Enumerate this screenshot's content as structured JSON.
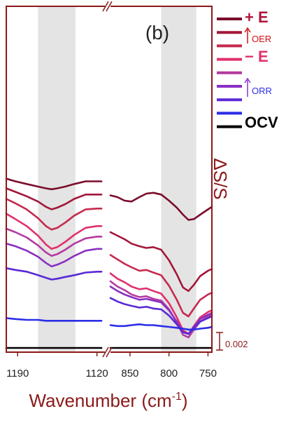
{
  "chart_data": {
    "type": "line",
    "panel_label": "(b)",
    "xlabel": "Wavenumber (cm",
    "xlabel_superscript": "-1",
    "xlabel_close": ")",
    "ylabel": "ΔS/S",
    "scale_bar_label": "0.002",
    "axis_color": "#8b1a1a",
    "broken_x_axis": true,
    "x_segments": [
      {
        "range": [
          1200,
          1113
        ],
        "ticks": [
          1190,
          1120
        ]
      },
      {
        "range": [
          875,
          745
        ],
        "ticks": [
          850,
          800,
          750
        ]
      }
    ],
    "shaded_regions": [
      {
        "segment": 0,
        "x": [
          1172,
          1139
        ]
      },
      {
        "segment": 1,
        "x": [
          810,
          765
        ]
      }
    ],
    "legend": {
      "top_label": "+ E",
      "oer_label": "OER",
      "bottom_label": "− E",
      "orr_label": "ORR",
      "ocv_label": "OCV"
    },
    "series": [
      {
        "color": "#7b0d2a",
        "offset": 0.0193,
        "left_x": [
          1200,
          1192,
          1182,
          1172,
          1165,
          1160,
          1155,
          1148,
          1140,
          1130,
          1120,
          1116
        ],
        "left_y": [
          0.0,
          -0.0003,
          -0.0006,
          -0.0009,
          -0.0011,
          -0.0012,
          -0.0011,
          -0.0009,
          -0.0006,
          -0.0003,
          -0.0003,
          -0.0003
        ],
        "right_x": [
          875,
          866,
          857,
          848,
          838,
          829,
          820,
          810,
          800,
          790,
          782,
          775,
          768,
          760,
          750,
          745
        ],
        "right_y": [
          -0.0019,
          -0.0021,
          -0.0025,
          -0.0026,
          -0.0021,
          -0.0017,
          -0.0016,
          -0.0018,
          -0.0025,
          -0.0033,
          -0.0041,
          -0.0047,
          -0.0046,
          -0.0041,
          -0.0035,
          -0.0032
        ]
      },
      {
        "color": "#a3173a",
        "offset": 0.0182,
        "left_x": [
          1200,
          1192,
          1182,
          1172,
          1165,
          1160,
          1155,
          1148,
          1140,
          1130,
          1120,
          1116
        ],
        "left_y": [
          0.0,
          -0.0004,
          -0.0009,
          -0.0015,
          -0.0021,
          -0.0024,
          -0.0022,
          -0.0018,
          -0.0012,
          -0.0007,
          -0.0007,
          -0.0007
        ],
        "right_x": [
          875,
          866,
          857,
          848,
          838,
          829,
          820,
          810,
          800,
          790,
          782,
          775,
          768,
          760,
          750,
          745
        ],
        "right_y": [
          -0.005,
          -0.0054,
          -0.0058,
          -0.0063,
          -0.0066,
          -0.0068,
          -0.0067,
          -0.007,
          -0.0082,
          -0.0098,
          -0.0113,
          -0.0117,
          -0.011,
          -0.01,
          -0.0094,
          -0.0092
        ]
      },
      {
        "color": "#c42a4e",
        "offset": 0.017,
        "left_x": [
          1200,
          1192,
          1182,
          1172,
          1165,
          1160,
          1155,
          1148,
          1140,
          1130,
          1120,
          1116
        ],
        "left_y": [
          0.0,
          -0.0005,
          -0.0012,
          -0.0022,
          -0.0031,
          -0.0035,
          -0.0033,
          -0.0027,
          -0.0019,
          -0.0012,
          -0.0011,
          -0.0011
        ],
        "right_x": [
          875,
          866,
          857,
          848,
          838,
          829,
          820,
          810,
          800,
          790,
          782,
          775,
          768,
          760,
          750,
          745
        ],
        "right_y": [
          -0.0064,
          -0.0069,
          -0.0074,
          -0.0078,
          -0.0082,
          -0.0081,
          -0.0084,
          -0.0087,
          -0.0099,
          -0.0115,
          -0.013,
          -0.0134,
          -0.0125,
          -0.0115,
          -0.0109,
          -0.0107
        ]
      },
      {
        "color": "#e0306e",
        "offset": 0.0153,
        "left_x": [
          1200,
          1192,
          1182,
          1172,
          1165,
          1160,
          1155,
          1148,
          1140,
          1130,
          1120,
          1116
        ],
        "left_y": [
          0.0,
          -0.0006,
          -0.0014,
          -0.0025,
          -0.0035,
          -0.004,
          -0.0038,
          -0.0032,
          -0.0024,
          -0.0016,
          -0.0014,
          -0.0014
        ],
        "right_x": [
          875,
          866,
          857,
          848,
          838,
          829,
          820,
          810,
          800,
          790,
          782,
          775,
          768,
          760,
          750,
          745
        ],
        "right_y": [
          -0.0068,
          -0.0074,
          -0.0078,
          -0.0083,
          -0.0086,
          -0.0085,
          -0.0088,
          -0.0091,
          -0.0102,
          -0.0118,
          -0.0133,
          -0.0137,
          -0.0128,
          -0.0118,
          -0.0112,
          -0.011
        ]
      },
      {
        "color": "#b43aa0",
        "offset": 0.0136,
        "left_x": [
          1200,
          1192,
          1182,
          1172,
          1165,
          1160,
          1155,
          1148,
          1140,
          1130,
          1120,
          1116
        ],
        "left_y": [
          0.0,
          -0.0004,
          -0.001,
          -0.0019,
          -0.0027,
          -0.0031,
          -0.0029,
          -0.0024,
          -0.0017,
          -0.0011,
          -0.0009,
          -0.0009
        ],
        "right_x": [
          875,
          866,
          857,
          848,
          838,
          829,
          820,
          810,
          800,
          790,
          782,
          775,
          768,
          760,
          750,
          745
        ],
        "right_y": [
          -0.006,
          -0.0066,
          -0.007,
          -0.0075,
          -0.0078,
          -0.0077,
          -0.008,
          -0.0082,
          -0.0092,
          -0.0107,
          -0.0121,
          -0.0124,
          -0.0115,
          -0.0106,
          -0.01,
          -0.0098
        ]
      },
      {
        "color": "#8a2fc2",
        "offset": 0.0119,
        "left_x": [
          1200,
          1192,
          1182,
          1172,
          1165,
          1160,
          1155,
          1148,
          1140,
          1130,
          1120,
          1116
        ],
        "left_y": [
          0.0,
          -0.0003,
          -0.0008,
          -0.0015,
          -0.0022,
          -0.0026,
          -0.0024,
          -0.002,
          -0.0014,
          -0.0008,
          -0.0006,
          -0.0006
        ],
        "right_x": [
          875,
          866,
          857,
          848,
          838,
          829,
          820,
          810,
          800,
          790,
          782,
          775,
          768,
          760,
          750,
          745
        ],
        "right_y": [
          -0.0049,
          -0.0054,
          -0.0058,
          -0.0061,
          -0.0064,
          -0.0063,
          -0.0065,
          -0.0067,
          -0.0076,
          -0.0089,
          -0.0101,
          -0.0103,
          -0.0095,
          -0.0086,
          -0.0081,
          -0.0079
        ]
      },
      {
        "color": "#5a2ad6",
        "offset": 0.0091,
        "left_x": [
          1200,
          1192,
          1182,
          1172,
          1165,
          1160,
          1155,
          1148,
          1140,
          1130,
          1120,
          1116
        ],
        "left_y": [
          0.0,
          -0.0002,
          -0.0004,
          -0.0008,
          -0.0011,
          -0.0013,
          -0.0012,
          -0.001,
          -0.0008,
          -0.0005,
          -0.0004,
          -0.0004
        ],
        "right_x": [
          875,
          866,
          857,
          848,
          838,
          829,
          820,
          810,
          800,
          790,
          782,
          775,
          768,
          760,
          750,
          745
        ],
        "right_y": [
          -0.0034,
          -0.0038,
          -0.0041,
          -0.0043,
          -0.0045,
          -0.0044,
          -0.0046,
          -0.0047,
          -0.0054,
          -0.0064,
          -0.0073,
          -0.0075,
          -0.0068,
          -0.0061,
          -0.0057,
          -0.0055
        ]
      },
      {
        "color": "#2b2ee6",
        "offset": 0.0034,
        "left_x": [
          1200,
          1192,
          1182,
          1172,
          1165,
          1160,
          1155,
          1148,
          1140,
          1130,
          1120,
          1116
        ],
        "left_y": [
          0.0,
          -0.0001,
          -0.0002,
          -0.0002,
          -0.0003,
          -0.0003,
          -0.0003,
          -0.0003,
          -0.0003,
          -0.0003,
          -0.0003,
          -0.0003
        ],
        "right_x": [
          875,
          866,
          857,
          848,
          838,
          829,
          820,
          810,
          800,
          790,
          782,
          775,
          768,
          760,
          750,
          745
        ],
        "right_y": [
          -0.0008,
          -0.0009,
          -0.0009,
          -0.0008,
          -0.0007,
          -0.0008,
          -0.0008,
          -0.0009,
          -0.001,
          -0.0011,
          -0.0012,
          -0.0013,
          -0.0013,
          -0.0012,
          -0.0011,
          -0.001
        ]
      },
      {
        "color": "#000000",
        "offset": 0.0,
        "left_x": [
          1200,
          1192,
          1182,
          1172,
          1165,
          1160,
          1155,
          1148,
          1140,
          1130,
          1120,
          1116
        ],
        "left_y": [
          0.0,
          0.0,
          0.0,
          0.0,
          0.0,
          0.0,
          0.0,
          0.0,
          0.0,
          0.0,
          0.0,
          0.0
        ],
        "right_x": [
          875,
          866,
          857,
          848,
          838,
          829,
          820,
          810,
          800,
          790,
          782,
          775,
          768,
          760,
          750,
          745
        ],
        "right_y": [
          0.0,
          0.0,
          0.0,
          0.0,
          0.0,
          0.0,
          0.0,
          0.0,
          0.0,
          0.0,
          0.0,
          0.0,
          0.0,
          0.0,
          0.0,
          0.0
        ]
      }
    ]
  }
}
